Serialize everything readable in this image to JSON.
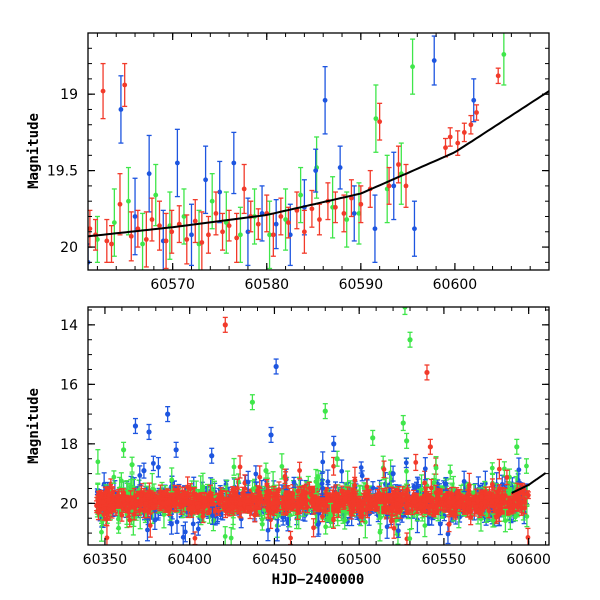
{
  "chart_data": [
    {
      "type": "scatter",
      "panel": "top",
      "title": "",
      "xlabel": "",
      "ylabel": "Magnitude",
      "xlim": [
        60561,
        60610
      ],
      "ylim": [
        20.15,
        18.6
      ],
      "y_inverted": true,
      "xticks": [
        60570,
        60580,
        60590,
        60600
      ],
      "yticks": [
        19,
        19.5,
        20
      ],
      "ytick_labels": [
        "19",
        "19.5",
        "20"
      ],
      "grid": false,
      "legend": "none",
      "colors": {
        "red": "#f23a2a",
        "green": "#3fe64a",
        "blue": "#1d55e0"
      },
      "series": [
        {
          "color": "red",
          "points": [
            [
              60561.2,
              19.88,
              0.12
            ],
            [
              60561.8,
              19.92,
              0.1
            ],
            [
              60562.6,
              18.98,
              0.18
            ],
            [
              60563.0,
              19.96,
              0.14
            ],
            [
              60563.5,
              19.98,
              0.12
            ],
            [
              60564.4,
              19.72,
              0.2
            ],
            [
              60564.9,
              18.94,
              0.14
            ],
            [
              60565.6,
              19.93,
              0.16
            ],
            [
              60566.3,
              19.88,
              0.12
            ],
            [
              60567.2,
              19.95,
              0.18
            ],
            [
              60567.8,
              19.82,
              0.14
            ],
            [
              60568.6,
              19.86,
              0.16
            ],
            [
              60569.3,
              19.96,
              0.18
            ],
            [
              60569.9,
              19.9,
              0.14
            ],
            [
              60570.7,
              19.85,
              0.12
            ],
            [
              60571.5,
              19.95,
              0.16
            ],
            [
              60572.4,
              19.83,
              0.14
            ],
            [
              60573.1,
              19.97,
              0.2
            ],
            [
              60573.8,
              19.92,
              0.12
            ],
            [
              60574.6,
              19.78,
              0.14
            ],
            [
              60575.3,
              19.9,
              0.12
            ],
            [
              60576.0,
              19.86,
              0.1
            ],
            [
              60576.8,
              19.94,
              0.16
            ],
            [
              60577.6,
              19.62,
              0.16
            ],
            [
              60578.3,
              19.8,
              0.1
            ],
            [
              60579.1,
              19.85,
              0.1
            ],
            [
              60580.0,
              19.78,
              0.12
            ],
            [
              60580.7,
              19.92,
              0.14
            ],
            [
              60581.5,
              19.8,
              0.12
            ],
            [
              60582.3,
              19.84,
              0.1
            ],
            [
              60583.2,
              19.76,
              0.12
            ],
            [
              60584.0,
              19.9,
              0.14
            ],
            [
              60584.8,
              19.75,
              0.12
            ],
            [
              60585.6,
              19.82,
              0.1
            ],
            [
              60586.5,
              19.7,
              0.12
            ],
            [
              60587.3,
              19.74,
              0.1
            ],
            [
              60588.2,
              19.78,
              0.12
            ],
            [
              60589.0,
              19.68,
              0.12
            ],
            [
              60590.0,
              19.72,
              0.12
            ],
            [
              60591.0,
              19.62,
              0.12
            ],
            [
              60592.0,
              19.18,
              0.12
            ],
            [
              60593.0,
              19.6,
              0.12
            ],
            [
              60594.0,
              19.46,
              0.12
            ],
            [
              60594.8,
              19.6,
              0.14
            ],
            [
              60599.0,
              19.35,
              0.06
            ],
            [
              60599.5,
              19.28,
              0.06
            ],
            [
              60600.3,
              19.32,
              0.08
            ],
            [
              60601.0,
              19.25,
              0.06
            ],
            [
              60601.7,
              19.2,
              0.06
            ],
            [
              60602.3,
              19.12,
              0.05
            ],
            [
              60604.6,
              18.88,
              0.05
            ]
          ]
        },
        {
          "color": "green",
          "points": [
            [
              60562.0,
              19.95,
              0.15
            ],
            [
              60563.8,
              19.84,
              0.22
            ],
            [
              60565.3,
              19.7,
              0.22
            ],
            [
              60566.8,
              19.98,
              0.2
            ],
            [
              60568.2,
              19.66,
              0.2
            ],
            [
              60569.7,
              19.86,
              0.22
            ],
            [
              60571.2,
              19.8,
              0.18
            ],
            [
              60572.8,
              19.98,
              0.22
            ],
            [
              60574.2,
              19.7,
              0.18
            ],
            [
              60575.7,
              19.84,
              0.2
            ],
            [
              60577.2,
              19.92,
              0.18
            ],
            [
              60578.7,
              19.8,
              0.18
            ],
            [
              60580.3,
              19.92,
              0.22
            ],
            [
              60582.0,
              19.82,
              0.2
            ],
            [
              60583.6,
              19.66,
              0.18
            ],
            [
              60585.3,
              19.48,
              0.2
            ],
            [
              60587.0,
              19.74,
              0.2
            ],
            [
              60588.5,
              19.82,
              0.18
            ],
            [
              60589.8,
              19.78,
              0.2
            ],
            [
              60591.6,
              19.16,
              0.22
            ],
            [
              60592.8,
              19.62,
              0.22
            ],
            [
              60594.3,
              19.52,
              0.2
            ],
            [
              60595.5,
              18.82,
              0.18
            ],
            [
              60605.2,
              18.74,
              0.2
            ]
          ]
        },
        {
          "color": "blue",
          "points": [
            [
              60561.0,
              20.1,
              0.12
            ],
            [
              60564.5,
              19.1,
              0.22
            ],
            [
              60566.0,
              19.8,
              0.25
            ],
            [
              60567.5,
              19.52,
              0.25
            ],
            [
              60569.0,
              19.96,
              0.2
            ],
            [
              60570.5,
              19.45,
              0.22
            ],
            [
              60572.0,
              19.92,
              0.2
            ],
            [
              60573.5,
              19.56,
              0.22
            ],
            [
              60575.0,
              19.64,
              0.2
            ],
            [
              60576.5,
              19.45,
              0.2
            ],
            [
              60578.0,
              19.9,
              0.22
            ],
            [
              60579.5,
              19.78,
              0.18
            ],
            [
              60581.0,
              19.85,
              0.16
            ],
            [
              60582.5,
              19.92,
              0.2
            ],
            [
              60584.0,
              19.74,
              0.18
            ],
            [
              60585.2,
              19.5,
              0.14
            ],
            [
              60586.2,
              19.04,
              0.22
            ],
            [
              60587.8,
              19.48,
              0.14
            ],
            [
              60589.3,
              19.78,
              0.18
            ],
            [
              60591.5,
              19.88,
              0.22
            ],
            [
              60593.5,
              19.6,
              0.22
            ],
            [
              60595.7,
              19.88,
              0.18
            ],
            [
              60597.8,
              18.78,
              0.16
            ],
            [
              60602.0,
              19.04,
              0.14
            ]
          ]
        }
      ],
      "model_curve": {
        "color": "#000000",
        "x": [
          60561,
          60570,
          60580,
          60590,
          60600,
          60610
        ],
        "y": [
          19.93,
          19.87,
          19.79,
          19.65,
          19.38,
          18.98
        ]
      }
    },
    {
      "type": "scatter",
      "panel": "bottom",
      "title": "",
      "xlabel": "HJD−2400000",
      "ylabel": "Magnitude",
      "xlim": [
        60340,
        60612
      ],
      "ylim": [
        21.4,
        13.4
      ],
      "y_inverted": true,
      "xticks": [
        60350,
        60400,
        60450,
        60500,
        60550,
        60600
      ],
      "yticks": [
        14,
        16,
        18,
        20
      ],
      "ytick_labels": [
        "14",
        "16",
        "18",
        "20"
      ],
      "grid": false,
      "legend": "none",
      "baseline": {
        "x_start": 60345,
        "x_end": 60600,
        "y": 19.95
      },
      "outliers": [
        {
          "color": "red",
          "points": [
            [
              60421,
              14.0
            ],
            [
              60540,
              15.6
            ],
            [
              60542,
              18.1
            ],
            [
              60553,
              20.7
            ],
            [
              60472,
              19.9
            ]
          ]
        },
        {
          "color": "green",
          "points": [
            [
              60527,
              13.4
            ],
            [
              60530,
              14.5
            ],
            [
              60437,
              16.6
            ],
            [
              60480,
              16.9
            ],
            [
              60526,
              17.3
            ],
            [
              60593,
              18.1
            ],
            [
              60528,
              17.9
            ],
            [
              60361,
              18.2
            ],
            [
              60366,
              18.7
            ],
            [
              60487,
              18.5
            ],
            [
              60445,
              18.9
            ],
            [
              60508,
              17.8
            ]
          ]
        },
        {
          "color": "blue",
          "points": [
            [
              60451,
              15.4
            ],
            [
              60368,
              17.4
            ],
            [
              60387,
              17.0
            ],
            [
              60448,
              17.7
            ],
            [
              60485,
              18.0
            ],
            [
              60392,
              18.2
            ],
            [
              60376,
              17.6
            ],
            [
              60413,
              18.4
            ],
            [
              60373,
              18.9
            ],
            [
              60520,
              19.0
            ]
          ]
        }
      ],
      "model_curve": {
        "color": "#000000",
        "x": [
          60590,
          60600,
          60610
        ],
        "y": [
          19.65,
          19.38,
          18.98
        ]
      }
    }
  ]
}
